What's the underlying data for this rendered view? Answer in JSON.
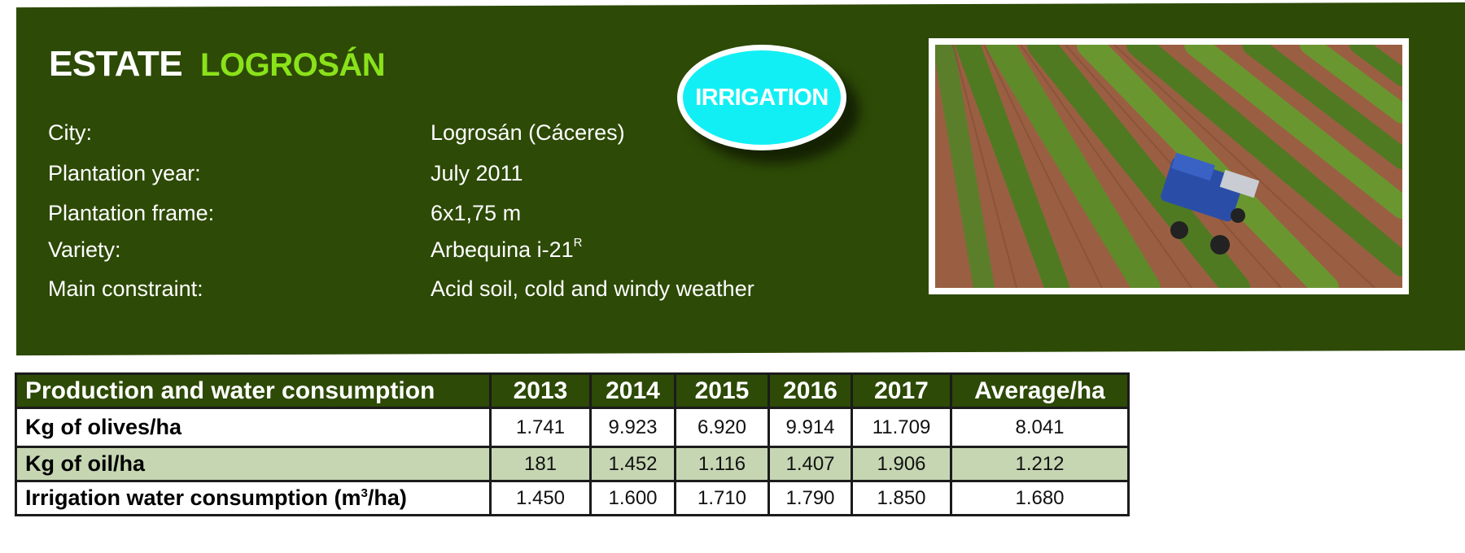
{
  "estate": {
    "title_prefix": "ESTATE",
    "title_name": "LOGROSÁN"
  },
  "badge": {
    "label": "IRRIGATION"
  },
  "details": [
    {
      "label": "City:",
      "value": "Logrosán (Cáceres)"
    },
    {
      "label": "Plantation year:",
      "value": "July 2011"
    },
    {
      "label": "Plantation frame:",
      "value": "6x1,75 m"
    },
    {
      "label": "Variety:",
      "value": "Arbequina i-21",
      "value_sup": "R"
    },
    {
      "label": "Main constraint:",
      "value": "Acid soil, cold and windy weather"
    }
  ],
  "table": {
    "header": [
      "Production and water consumption",
      "2013",
      "2014",
      "2015",
      "2016",
      "2017",
      "Average/ha"
    ],
    "rows": [
      {
        "label": "Kg of olives/ha",
        "values": [
          "1.741",
          "9.923",
          "6.920",
          "9.914",
          "11.709",
          "8.041"
        ]
      },
      {
        "label": "Kg of oil/ha",
        "values": [
          "181",
          "1.452",
          "1.116",
          "1.407",
          "1.906",
          "1.212"
        ]
      },
      {
        "label": "Irrigation water consumption (m",
        "label_sup": "3",
        "label_suffix": "/ha)",
        "values": [
          "1.450",
          "1.600",
          "1.710",
          "1.790",
          "1.850",
          "1.680"
        ]
      }
    ]
  },
  "colors": {
    "banner": "#2d4a06",
    "accent_green": "#8ae21a",
    "badge_cyan": "#12eff4",
    "row_alt": "#c6d6b3"
  }
}
